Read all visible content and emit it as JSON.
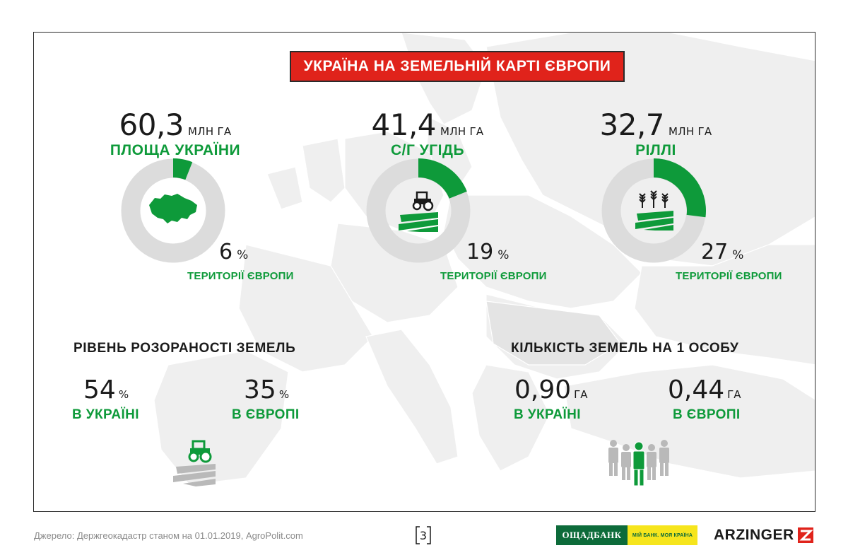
{
  "banner": {
    "title": "УКРАЇНА НА ЗЕМЕЛЬНІЙ КАРТІ ЄВРОПИ"
  },
  "stats": [
    {
      "value": "60,3",
      "unit": "МЛН ГА",
      "label": "ПЛОЩА УКРАЇНИ",
      "share_percent": 6,
      "percent": "6",
      "percent_sign": "%",
      "footnote": "ТЕРИТОРІЇ ЄВРОПИ",
      "icon": "ukraine-map-icon"
    },
    {
      "value": "41,4",
      "unit": "МЛН ГА",
      "label": "С/Г УГІДЬ",
      "share_percent": 19,
      "percent": "19",
      "percent_sign": "%",
      "footnote": "ТЕРИТОРІЇ ЄВРОПИ",
      "icon": "tractor-field-icon"
    },
    {
      "value": "32,7",
      "unit": "МЛН ГА",
      "label": "РІЛЛІ",
      "share_percent": 27,
      "percent": "27",
      "percent_sign": "%",
      "footnote": "ТЕРИТОРІЇ ЄВРОПИ",
      "icon": "wheat-field-icon"
    }
  ],
  "plowing": {
    "title": "РІВЕНЬ РОЗОРАНОСТІ ЗЕМЕЛЬ",
    "ukraine": {
      "value": "54",
      "unit": "%",
      "label": "В УКРАЇНІ"
    },
    "europe": {
      "value": "35",
      "unit": "%",
      "label": "В ЄВРОПІ"
    },
    "icon": "tractor-field-icon"
  },
  "per_person": {
    "title": "КІЛЬКІСТЬ ЗЕМЕЛЬ НА 1 ОСОБУ",
    "ukraine": {
      "value": "0,90",
      "unit": "ГА",
      "label": "В УКРАЇНІ"
    },
    "europe": {
      "value": "0,44",
      "unit": "ГА",
      "label": "В ЄВРОПІ"
    },
    "icon": "people-group-icon"
  },
  "footer": {
    "source": "Джерело: Держгеокадастр станом на 01.01.2019, AgroPolit.com",
    "page": "3",
    "oschadbank": "ОЩАДБАНК",
    "oschadbank_slogan": "МІЙ БАНК. МОЯ КРАЇНА",
    "arzinger": "ARZINGER"
  },
  "colors": {
    "accent_green": "#0e9a3a",
    "banner_red": "#e0231b",
    "donut_gray": "#dcdcdc",
    "map_gray": "#efefef"
  }
}
